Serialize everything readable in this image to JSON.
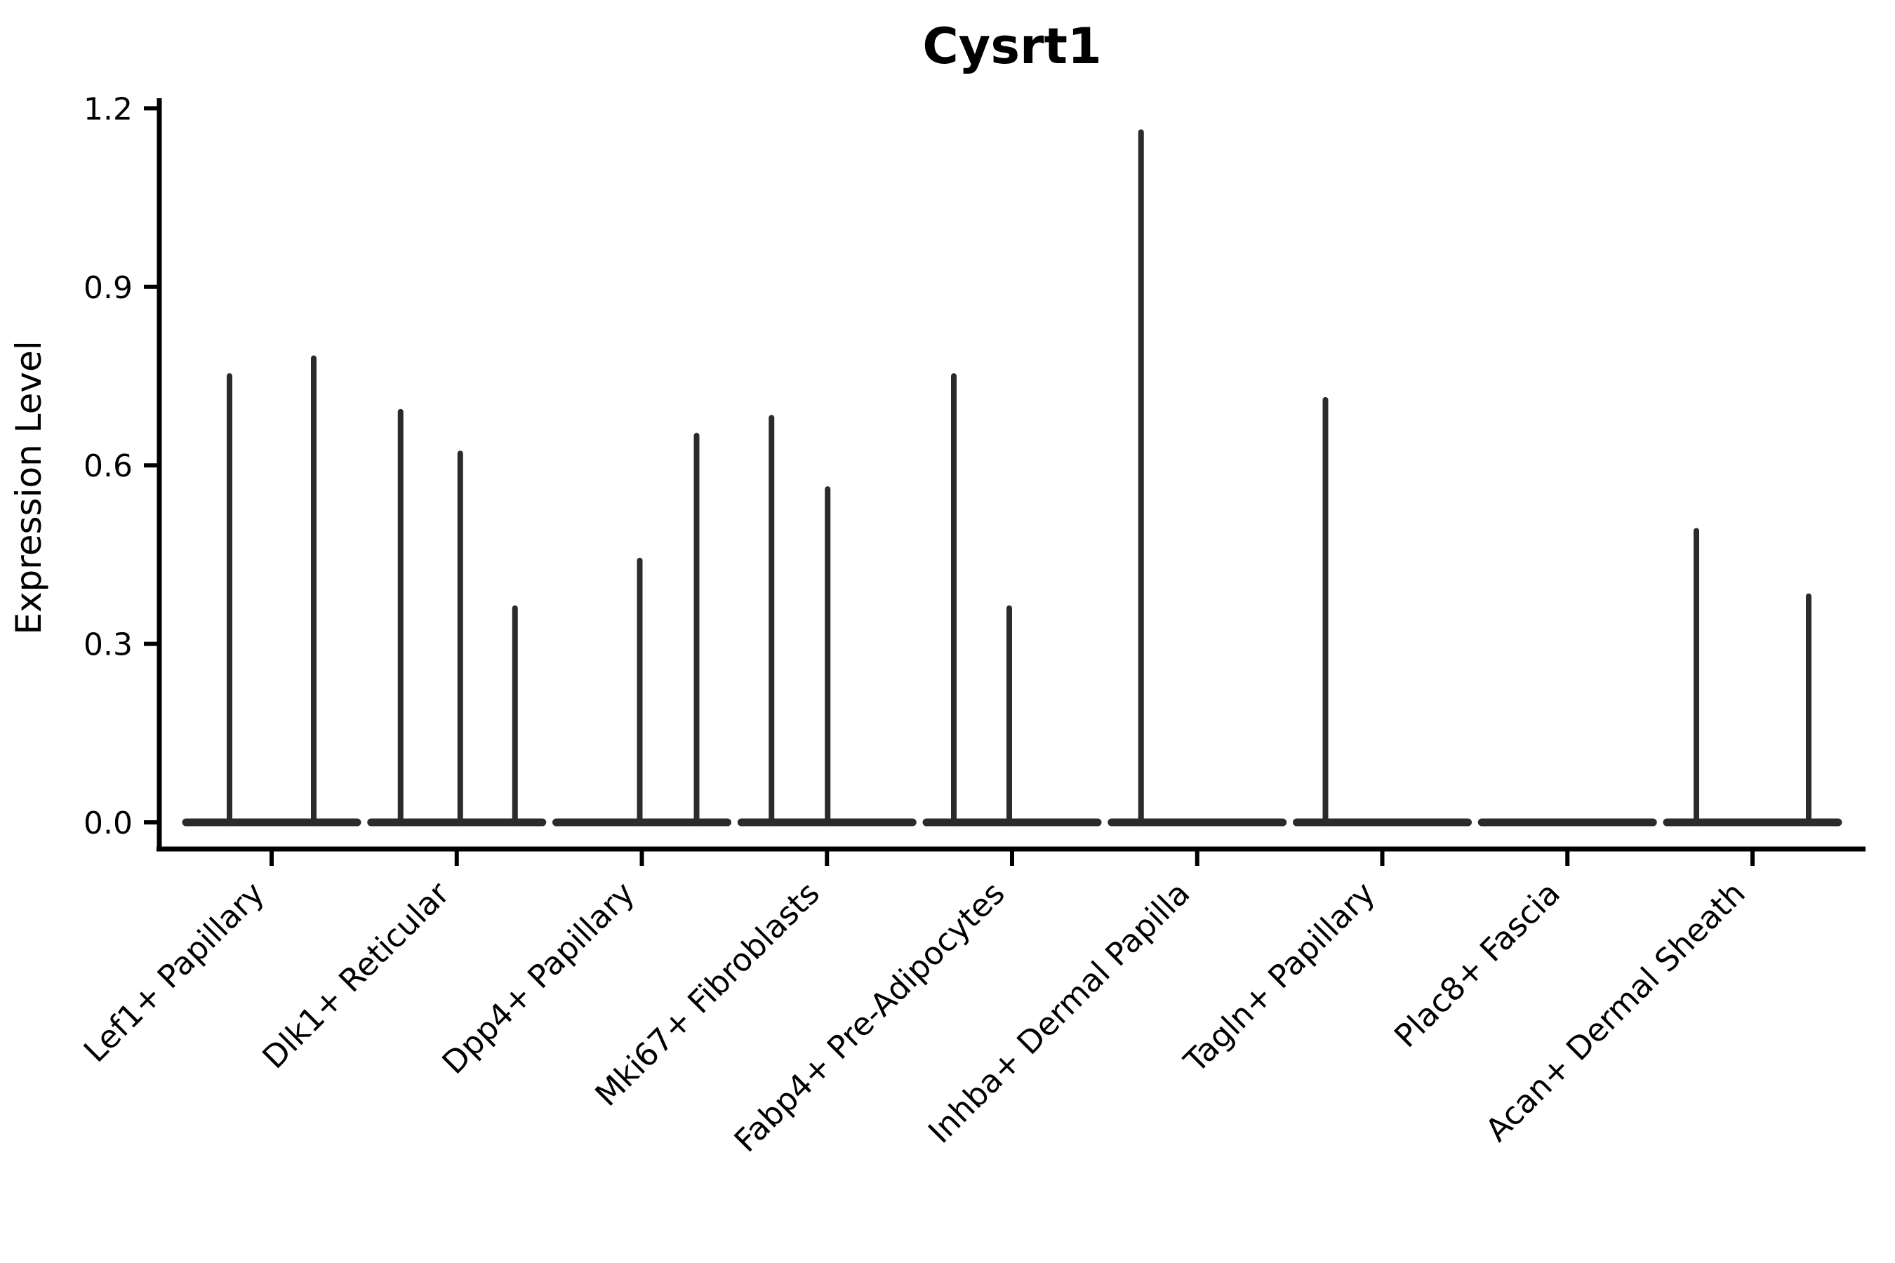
{
  "title": "Cysrt1",
  "ylabel": "Expression Level",
  "chart_data": {
    "type": "violin",
    "title": "Cysrt1",
    "xlabel": "",
    "ylabel": "Expression Level",
    "ylim": [
      -0.06,
      1.24
    ],
    "yticks": [
      0,
      0.3,
      0.6,
      0.9,
      1.2
    ],
    "ytick_labels": [
      "0.0",
      "0.3",
      "0.6",
      "0.9",
      "1.2"
    ],
    "grid": false,
    "legend": "none",
    "xtick_rotation_deg": 45,
    "style": "dark-outline violins (flat base at 0 with thin density spikes), left and bottom spines only",
    "categories": [
      {
        "label": "Lef1+ Papillary",
        "violins": [
          {
            "offset": -60,
            "peak": 0.75
          },
          {
            "offset": 60,
            "peak": 0.78
          }
        ]
      },
      {
        "label": "Dlk1+ Reticular",
        "violins": [
          {
            "offset": -80,
            "peak": 0.69
          },
          {
            "offset": 5,
            "peak": 0.62
          },
          {
            "offset": 83,
            "peak": 0.36
          }
        ]
      },
      {
        "label": "Dpp4+ Papillary",
        "violins": [
          {
            "offset": -81,
            "peak": 0
          },
          {
            "offset": -3,
            "peak": 0.44
          },
          {
            "offset": 78,
            "peak": 0.65
          }
        ]
      },
      {
        "label": "Mki67+ Fibroblasts",
        "violins": [
          {
            "offset": -79,
            "peak": 0.68
          },
          {
            "offset": 1,
            "peak": 0.56
          },
          {
            "offset": 81,
            "peak": 0
          }
        ]
      },
      {
        "label": "Fabp4+ Pre-Adipocytes",
        "violins": [
          {
            "offset": -83,
            "peak": 0.75
          },
          {
            "offset": -4,
            "peak": 0.36
          },
          {
            "offset": 81,
            "peak": 0
          }
        ]
      },
      {
        "label": "Inhba+ Dermal Papilla",
        "violins": [
          {
            "offset": -80,
            "peak": 1.16
          },
          {
            "offset": 0,
            "peak": 0
          },
          {
            "offset": 81,
            "peak": 0
          }
        ]
      },
      {
        "label": "Tagln+ Papillary",
        "violins": [
          {
            "offset": -81,
            "peak": 0.71
          },
          {
            "offset": 0,
            "peak": 0
          },
          {
            "offset": 81,
            "peak": 0
          }
        ]
      },
      {
        "label": "Plac8+ Fascia",
        "violins": [
          {
            "offset": 0,
            "peak": 0
          }
        ]
      },
      {
        "label": "Acan+ Dermal Sheath",
        "violins": [
          {
            "offset": -80,
            "peak": 0.49
          },
          {
            "offset": 0,
            "peak": 0
          },
          {
            "offset": 80,
            "peak": 0.38
          }
        ]
      }
    ],
    "colors": {
      "violin": "#2b2b2b",
      "spine": "#000000",
      "text": "#000000",
      "background": "#ffffff"
    }
  }
}
